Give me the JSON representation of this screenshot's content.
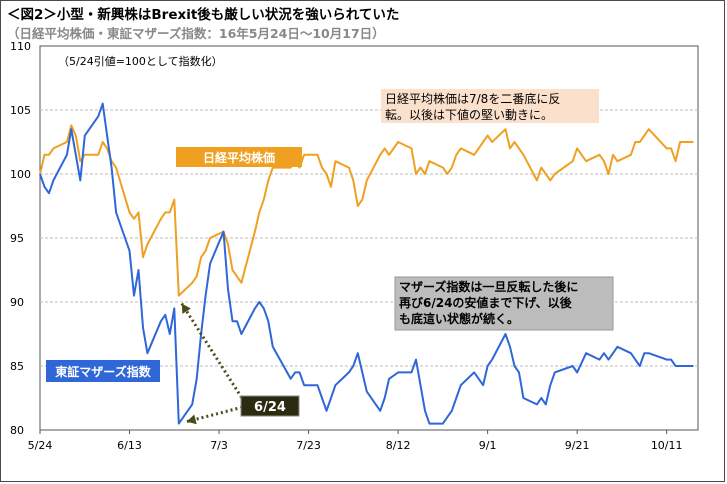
{
  "title": "＜図2＞小型・新興株はBrexit後も厳しい状況を強いられていた",
  "subtitle": "（日経平均株価・東証マザーズ指数：16年5月24日〜10月17日）",
  "colors": {
    "nikkei": "#f0a020",
    "mothers": "#2f66d8",
    "grid": "#bdbdbd",
    "note_orange_bg": "#fbe0cc",
    "note_gray_bg": "#bcbcbc",
    "label_blue_bg": "#2f66d8",
    "label_dark_bg": "#2b2b10",
    "arrow": "#4a4a1a"
  },
  "chart_data": {
    "type": "line",
    "title": "＜図2＞小型・新興株はBrexit後も厳しい状況を強いられていた",
    "subtitle": "（日経平均株価・東証マザーズ指数：16年5月24日〜10月17日）",
    "note": "（5/24引値=100として指数化）",
    "x_ticks": [
      "5/24",
      "6/13",
      "7/3",
      "7/23",
      "8/12",
      "9/1",
      "9/21",
      "10/11"
    ],
    "y_ticks": [
      80,
      85,
      90,
      95,
      100,
      105,
      110
    ],
    "ylim": [
      80,
      110
    ],
    "x_start": "5/24",
    "x_end": "10/17",
    "grid": true,
    "series": [
      {
        "name": "日経平均株価",
        "color": "#f0a020",
        "values": [
          [
            "5/24",
            100.0
          ],
          [
            "5/25",
            101.5
          ],
          [
            "5/26",
            101.5
          ],
          [
            "5/27",
            102.0
          ],
          [
            "5/30",
            102.5
          ],
          [
            "5/31",
            103.8
          ],
          [
            "6/1",
            103.0
          ],
          [
            "6/2",
            101.0
          ],
          [
            "6/3",
            101.5
          ],
          [
            "6/6",
            101.5
          ],
          [
            "6/7",
            102.5
          ],
          [
            "6/8",
            102.0
          ],
          [
            "6/9",
            101.0
          ],
          [
            "6/10",
            100.5
          ],
          [
            "6/13",
            97.0
          ],
          [
            "6/14",
            96.5
          ],
          [
            "6/15",
            97.0
          ],
          [
            "6/16",
            93.5
          ],
          [
            "6/17",
            94.5
          ],
          [
            "6/20",
            96.5
          ],
          [
            "6/21",
            97.0
          ],
          [
            "6/22",
            97.0
          ],
          [
            "6/23",
            98.0
          ],
          [
            "6/24",
            90.5
          ],
          [
            "6/27",
            91.5
          ],
          [
            "6/28",
            92.0
          ],
          [
            "6/29",
            93.5
          ],
          [
            "6/30",
            94.0
          ],
          [
            "7/1",
            95.0
          ],
          [
            "7/4",
            95.5
          ],
          [
            "7/5",
            94.5
          ],
          [
            "7/6",
            92.5
          ],
          [
            "7/7",
            92.0
          ],
          [
            "7/8",
            91.5
          ],
          [
            "7/11",
            95.5
          ],
          [
            "7/12",
            97.0
          ],
          [
            "7/13",
            98.0
          ],
          [
            "7/14",
            99.5
          ],
          [
            "7/15",
            100.5
          ],
          [
            "7/19",
            100.5
          ],
          [
            "7/20",
            101.0
          ],
          [
            "7/21",
            100.5
          ],
          [
            "7/22",
            101.5
          ],
          [
            "7/25",
            101.5
          ],
          [
            "7/26",
            100.5
          ],
          [
            "7/27",
            100.0
          ],
          [
            "7/28",
            99.0
          ],
          [
            "7/29",
            101.0
          ],
          [
            "8/1",
            100.5
          ],
          [
            "8/2",
            99.5
          ],
          [
            "8/3",
            97.5
          ],
          [
            "8/4",
            98.0
          ],
          [
            "8/5",
            99.5
          ],
          [
            "8/8",
            101.5
          ],
          [
            "8/9",
            102.0
          ],
          [
            "8/10",
            101.5
          ],
          [
            "8/12",
            102.5
          ],
          [
            "8/15",
            102.0
          ],
          [
            "8/16",
            100.0
          ],
          [
            "8/17",
            100.5
          ],
          [
            "8/18",
            100.0
          ],
          [
            "8/19",
            101.0
          ],
          [
            "8/22",
            100.5
          ],
          [
            "8/23",
            100.0
          ],
          [
            "8/24",
            100.5
          ],
          [
            "8/25",
            101.5
          ],
          [
            "8/26",
            102.0
          ],
          [
            "8/29",
            101.5
          ],
          [
            "8/30",
            102.0
          ],
          [
            "8/31",
            102.5
          ],
          [
            "9/1",
            103.0
          ],
          [
            "9/2",
            102.5
          ],
          [
            "9/5",
            103.5
          ],
          [
            "9/6",
            102.0
          ],
          [
            "9/7",
            102.5
          ],
          [
            "9/8",
            102.0
          ],
          [
            "9/9",
            101.5
          ],
          [
            "9/12",
            99.5
          ],
          [
            "9/13",
            100.5
          ],
          [
            "9/14",
            100.0
          ],
          [
            "9/15",
            99.5
          ],
          [
            "9/16",
            100.0
          ],
          [
            "9/20",
            101.0
          ],
          [
            "9/21",
            102.0
          ],
          [
            "9/23",
            101.0
          ],
          [
            "9/26",
            101.5
          ],
          [
            "9/27",
            101.0
          ],
          [
            "9/28",
            100.0
          ],
          [
            "9/29",
            101.5
          ],
          [
            "9/30",
            101.0
          ],
          [
            "10/3",
            101.5
          ],
          [
            "10/4",
            102.5
          ],
          [
            "10/5",
            102.5
          ],
          [
            "10/6",
            103.0
          ],
          [
            "10/7",
            103.5
          ],
          [
            "10/11",
            102.0
          ],
          [
            "10/12",
            102.0
          ],
          [
            "10/13",
            101.0
          ],
          [
            "10/14",
            102.5
          ],
          [
            "10/17",
            102.5
          ]
        ]
      },
      {
        "name": "東証マザーズ指数",
        "color": "#2f66d8",
        "values": [
          [
            "5/24",
            100.0
          ],
          [
            "5/25",
            99.0
          ],
          [
            "5/26",
            98.5
          ],
          [
            "5/27",
            99.5
          ],
          [
            "5/30",
            101.5
          ],
          [
            "5/31",
            103.5
          ],
          [
            "6/1",
            101.5
          ],
          [
            "6/2",
            99.5
          ],
          [
            "6/3",
            103.0
          ],
          [
            "6/6",
            104.5
          ],
          [
            "6/7",
            105.5
          ],
          [
            "6/8",
            103.0
          ],
          [
            "6/9",
            100.5
          ],
          [
            "6/10",
            97.0
          ],
          [
            "6/13",
            94.0
          ],
          [
            "6/14",
            90.5
          ],
          [
            "6/15",
            92.5
          ],
          [
            "6/16",
            88.0
          ],
          [
            "6/17",
            86.0
          ],
          [
            "6/20",
            88.5
          ],
          [
            "6/21",
            89.0
          ],
          [
            "6/22",
            87.5
          ],
          [
            "6/23",
            89.5
          ],
          [
            "6/24",
            80.5
          ],
          [
            "6/27",
            82.0
          ],
          [
            "6/28",
            84.0
          ],
          [
            "6/29",
            87.5
          ],
          [
            "6/30",
            90.5
          ],
          [
            "7/1",
            93.0
          ],
          [
            "7/4",
            95.5
          ],
          [
            "7/5",
            91.0
          ],
          [
            "7/6",
            88.5
          ],
          [
            "7/7",
            88.5
          ],
          [
            "7/8",
            87.5
          ],
          [
            "7/11",
            89.5
          ],
          [
            "7/12",
            90.0
          ],
          [
            "7/13",
            89.5
          ],
          [
            "7/14",
            88.5
          ],
          [
            "7/15",
            86.5
          ],
          [
            "7/19",
            84.0
          ],
          [
            "7/20",
            84.5
          ],
          [
            "7/21",
            84.5
          ],
          [
            "7/22",
            83.5
          ],
          [
            "7/25",
            83.5
          ],
          [
            "7/26",
            82.5
          ],
          [
            "7/27",
            81.5
          ],
          [
            "7/28",
            82.5
          ],
          [
            "7/29",
            83.5
          ],
          [
            "8/1",
            84.5
          ],
          [
            "8/2",
            85.0
          ],
          [
            "8/3",
            86.0
          ],
          [
            "8/4",
            84.5
          ],
          [
            "8/5",
            83.0
          ],
          [
            "8/8",
            81.5
          ],
          [
            "8/9",
            82.5
          ],
          [
            "8/10",
            84.0
          ],
          [
            "8/12",
            84.5
          ],
          [
            "8/15",
            84.5
          ],
          [
            "8/16",
            85.5
          ],
          [
            "8/17",
            83.5
          ],
          [
            "8/18",
            81.5
          ],
          [
            "8/19",
            80.5
          ],
          [
            "8/22",
            80.5
          ],
          [
            "8/23",
            81.0
          ],
          [
            "8/24",
            81.5
          ],
          [
            "8/25",
            82.5
          ],
          [
            "8/26",
            83.5
          ],
          [
            "8/29",
            84.5
          ],
          [
            "8/30",
            84.0
          ],
          [
            "8/31",
            83.5
          ],
          [
            "9/1",
            85.0
          ],
          [
            "9/2",
            85.5
          ],
          [
            "9/5",
            87.5
          ],
          [
            "9/6",
            86.5
          ],
          [
            "9/7",
            85.0
          ],
          [
            "9/8",
            84.5
          ],
          [
            "9/9",
            82.5
          ],
          [
            "9/12",
            82.0
          ],
          [
            "9/13",
            82.5
          ],
          [
            "9/14",
            82.0
          ],
          [
            "9/15",
            83.5
          ],
          [
            "9/16",
            84.5
          ],
          [
            "9/20",
            85.0
          ],
          [
            "9/21",
            84.5
          ],
          [
            "9/23",
            86.0
          ],
          [
            "9/26",
            85.5
          ],
          [
            "9/27",
            86.0
          ],
          [
            "9/28",
            85.5
          ],
          [
            "9/29",
            86.0
          ],
          [
            "9/30",
            86.5
          ],
          [
            "10/3",
            86.0
          ],
          [
            "10/4",
            85.5
          ],
          [
            "10/5",
            85.0
          ],
          [
            "10/6",
            86.0
          ],
          [
            "10/7",
            86.0
          ],
          [
            "10/11",
            85.5
          ],
          [
            "10/12",
            85.5
          ],
          [
            "10/13",
            85.0
          ],
          [
            "10/14",
            85.0
          ],
          [
            "10/17",
            85.0
          ]
        ]
      }
    ],
    "annotations": [
      {
        "text": "日経平均株価は7/8を二番底に反転。以後は下値の堅い動きに。",
        "lines": [
          "日経平均株価は7/8を二番底に反",
          "転。以後は下値の堅い動きに。"
        ],
        "style": "orange"
      },
      {
        "text": "マザーズ指数は一旦反転した後に再び6/24の安値まで下げ、以後も底這い状態が続く。",
        "lines": [
          "マザーズ指数は一旦反転した後に",
          "再び6/24の安値まで下げ、以後",
          "も底這い状態が続く。"
        ],
        "style": "gray"
      },
      {
        "text": "6/24",
        "style": "dark",
        "arrow_to_series": [
          "日経平均株価",
          "東証マザーズ指数"
        ],
        "arrow_date": "6/24"
      }
    ]
  }
}
